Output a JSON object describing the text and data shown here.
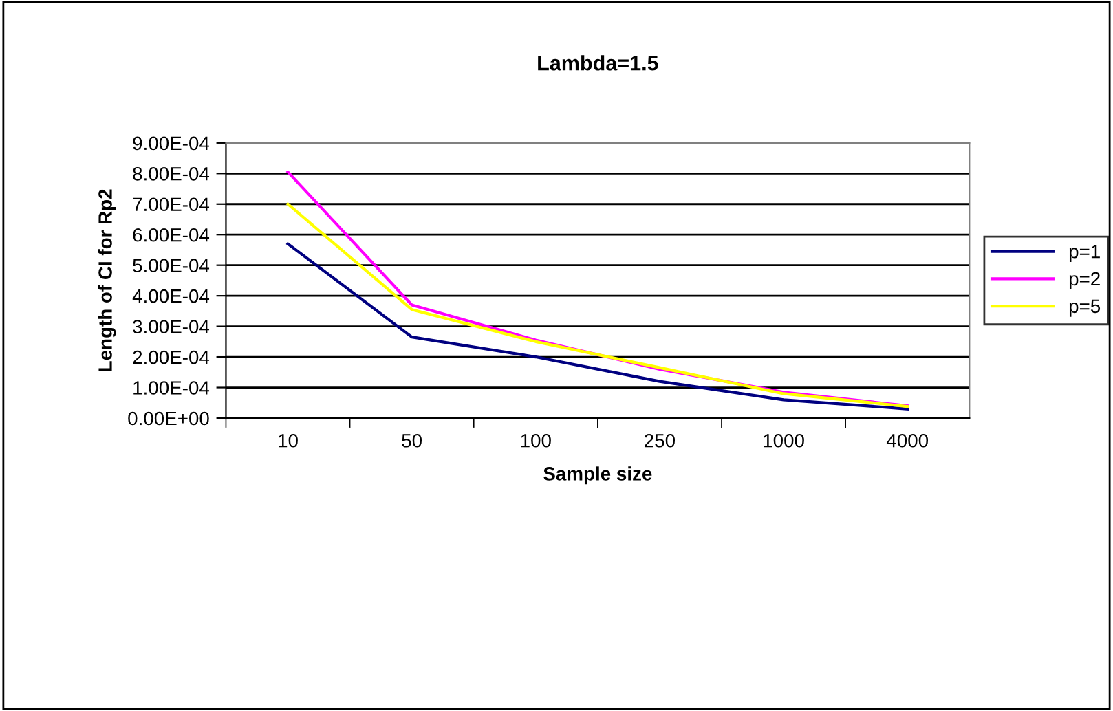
{
  "chart_data": {
    "type": "line",
    "title": "Lambda=1.5",
    "xlabel": "Sample size",
    "ylabel": "Length of CI for Rp2",
    "categories": [
      "10",
      "50",
      "100",
      "250",
      "1000",
      "4000"
    ],
    "series": [
      {
        "name": "p=1",
        "color": "#000080",
        "values": [
          0.00057,
          0.000265,
          0.0002,
          0.00012,
          6e-05,
          3e-05
        ]
      },
      {
        "name": "p=2",
        "color": "#ff00ff",
        "values": [
          0.000805,
          0.00037,
          0.000255,
          0.00016,
          8.5e-05,
          4e-05
        ]
      },
      {
        "name": "p=5",
        "color": "#ffff00",
        "values": [
          0.0007,
          0.000355,
          0.00025,
          0.000165,
          8e-05,
          3.8e-05
        ]
      }
    ],
    "ylim": [
      0,
      0.0009
    ],
    "yticks": [
      {
        "value": 0,
        "label": "0.00E+00"
      },
      {
        "value": 0.0001,
        "label": "1.00E-04"
      },
      {
        "value": 0.0002,
        "label": "2.00E-04"
      },
      {
        "value": 0.0003,
        "label": "3.00E-04"
      },
      {
        "value": 0.0004,
        "label": "4.00E-04"
      },
      {
        "value": 0.0005,
        "label": "5.00E-04"
      },
      {
        "value": 0.0006,
        "label": "6.00E-04"
      },
      {
        "value": 0.0007,
        "label": "7.00E-04"
      },
      {
        "value": 0.0008,
        "label": "8.00E-04"
      },
      {
        "value": 0.0009,
        "label": "9.00E-04"
      }
    ],
    "grid": "y",
    "legend": "right",
    "marker": "none",
    "line_style": "solid"
  }
}
